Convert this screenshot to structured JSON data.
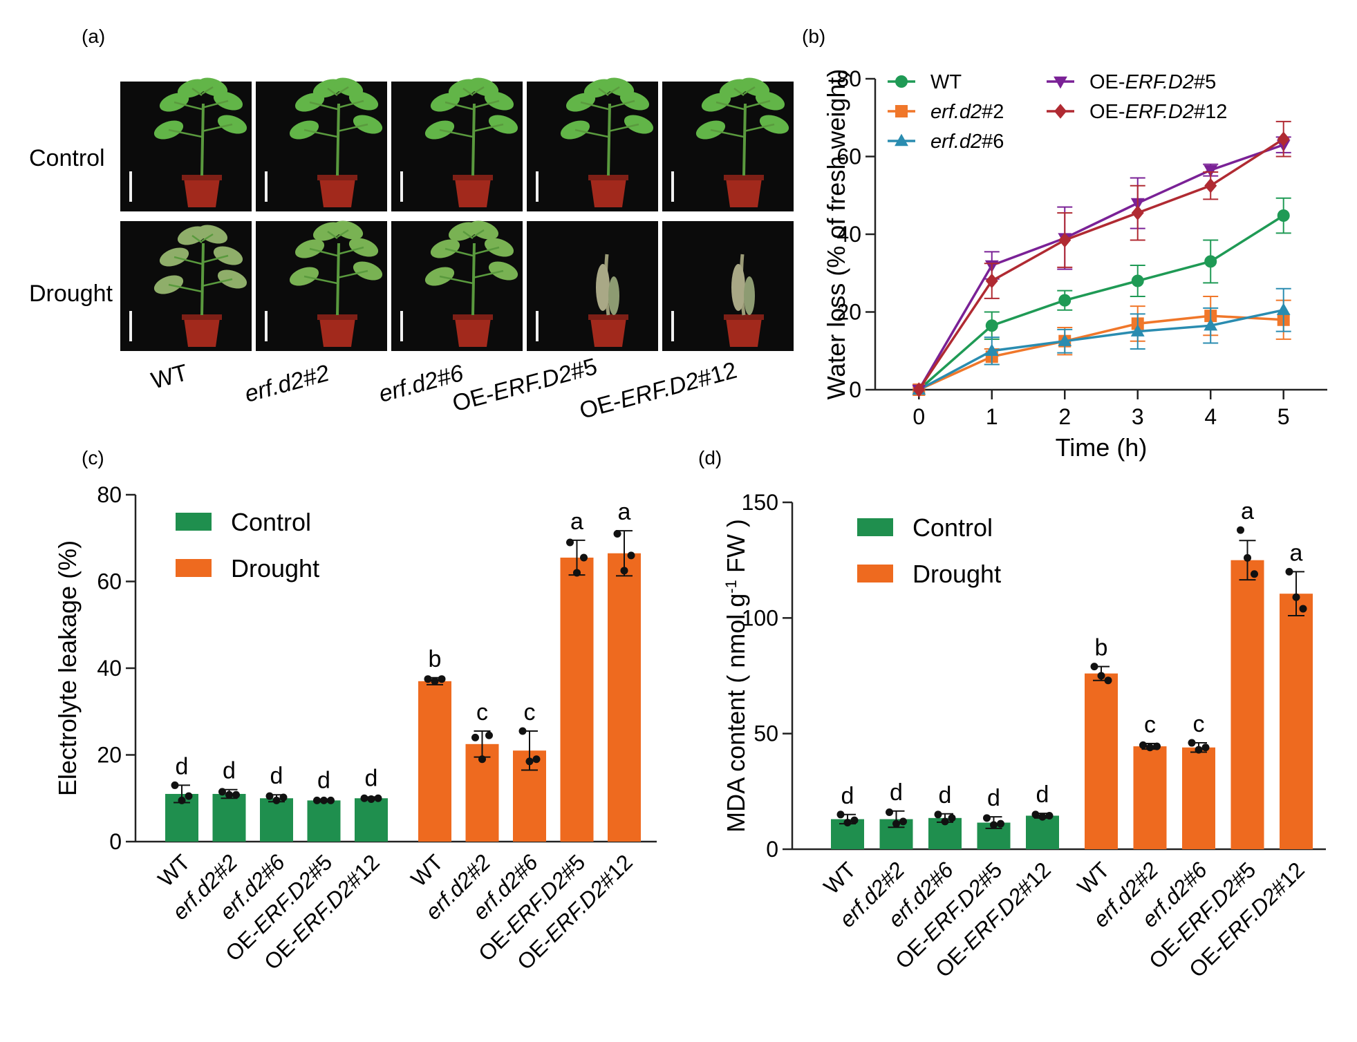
{
  "panel_labels": {
    "a": "(a)",
    "b": "(b)",
    "c": "(c)",
    "d": "(d)"
  },
  "colors": {
    "control": "#1f8f4e",
    "drought": "#ee6a1f",
    "WT": "#1f9a55",
    "erf2": "#f0772a",
    "erf6": "#2a8cb0",
    "oe5": "#7a2196",
    "oe12": "#b02a32",
    "photo_bg": "#0b0b0b",
    "plant": "#5fae45",
    "pot": "#a2291c"
  },
  "panel_a": {
    "row_labels": [
      "Control",
      "Drought"
    ],
    "columns": [
      {
        "parts": [
          {
            "t": "WT",
            "i": false
          }
        ]
      },
      {
        "parts": [
          {
            "t": "erf.d2#2",
            "i": true
          }
        ]
      },
      {
        "parts": [
          {
            "t": "erf.d2#6",
            "i": true
          }
        ]
      },
      {
        "parts": [
          {
            "t": "OE-",
            "i": false
          },
          {
            "t": "ERF.D2",
            "i": true
          },
          {
            "t": "#5",
            "i": false
          }
        ]
      },
      {
        "parts": [
          {
            "t": "OE-",
            "i": false
          },
          {
            "t": "ERF.D2",
            "i": true
          },
          {
            "t": "#12",
            "i": false
          }
        ]
      }
    ],
    "drought_state": [
      "moderate",
      "mild",
      "mild",
      "severe",
      "severe"
    ]
  },
  "chart_data": [
    {
      "type": "line",
      "panel": "b",
      "xlabel": "Time (h)",
      "ylabel": "Water loss (% of fresh weight)",
      "x": [
        0,
        1,
        2,
        3,
        4,
        5
      ],
      "xlim": [
        -0.6,
        5.6
      ],
      "ylim": [
        0,
        80
      ],
      "yticks": [
        0,
        20,
        40,
        60,
        80
      ],
      "series": [
        {
          "key": "WT",
          "marker": "circle",
          "legend_parts": [
            {
              "t": "WT",
              "i": false
            }
          ],
          "values": [
            0,
            16.5,
            23,
            28,
            33,
            44.8
          ],
          "err": [
            0,
            3.5,
            2.5,
            4,
            5.5,
            4.5
          ]
        },
        {
          "key": "erf2",
          "marker": "square",
          "legend_parts": [
            {
              "t": "erf.d2",
              "i": true
            },
            {
              "t": "#2",
              "i": false
            }
          ],
          "values": [
            0,
            8.5,
            12.5,
            17,
            19,
            18
          ],
          "err": [
            0,
            2,
            3.5,
            4.5,
            5,
            5
          ]
        },
        {
          "key": "erf6",
          "marker": "triangle",
          "legend_parts": [
            {
              "t": "erf.d2",
              "i": true
            },
            {
              "t": "#6",
              "i": false
            }
          ],
          "values": [
            0,
            10,
            12.5,
            15,
            16.5,
            20.5
          ],
          "err": [
            0,
            3.5,
            3,
            4.5,
            4.5,
            5.5
          ]
        },
        {
          "key": "oe5",
          "marker": "triangle-down",
          "legend_parts": [
            {
              "t": "OE-",
              "i": false
            },
            {
              "t": "ERF.D2",
              "i": true
            },
            {
              "t": "#5",
              "i": false
            }
          ],
          "values": [
            0,
            32,
            39,
            48,
            56.5,
            63
          ],
          "err": [
            0,
            3.5,
            8,
            6.5,
            1.5,
            2
          ]
        },
        {
          "key": "oe12",
          "marker": "diamond",
          "legend_parts": [
            {
              "t": "OE-",
              "i": false
            },
            {
              "t": "ERF.D2",
              "i": true
            },
            {
              "t": "#12",
              "i": false
            }
          ],
          "values": [
            0,
            28,
            38.5,
            45.5,
            52.5,
            64.5
          ],
          "err": [
            0,
            4.5,
            7,
            7,
            3.5,
            4.5
          ]
        }
      ]
    },
    {
      "type": "bar",
      "panel": "c",
      "ylabel": "Electrolyte leakage (%)",
      "ylim": [
        0,
        80
      ],
      "yticks": [
        0,
        20,
        40,
        60,
        80
      ],
      "legend": [
        "Control",
        "Drought"
      ],
      "groups": [
        {
          "name": "Control",
          "colorKey": "control",
          "values": [
            11,
            11,
            10,
            9.5,
            10
          ],
          "err": [
            2,
            1,
            0.8,
            0.3,
            0.3
          ],
          "letters": [
            "d",
            "d",
            "d",
            "d",
            "d"
          ],
          "points": [
            [
              13,
              9.5,
              10.5
            ],
            [
              11.5,
              10.8,
              10.8
            ],
            [
              10.5,
              9.5,
              10.2
            ],
            [
              9.5,
              9.5,
              9.5
            ],
            [
              10,
              9.8,
              10
            ]
          ]
        },
        {
          "name": "Drought",
          "colorKey": "drought",
          "values": [
            37,
            22.5,
            21,
            65.5,
            66.5
          ],
          "err": [
            0.8,
            3,
            4.5,
            4,
            5.2
          ],
          "letters": [
            "b",
            "c",
            "c",
            "a",
            "a"
          ],
          "points": [
            [
              37.5,
              37,
              37.5
            ],
            [
              24,
              19,
              24.5
            ],
            [
              25.5,
              18.5,
              19
            ],
            [
              69,
              62,
              65.5
            ],
            [
              71,
              62.5,
              66
            ]
          ]
        }
      ],
      "categories_parts": [
        [
          {
            "t": "WT",
            "i": false
          }
        ],
        [
          {
            "t": "erf.d2#2",
            "i": true
          }
        ],
        [
          {
            "t": "erf.d2#6",
            "i": true
          }
        ],
        [
          {
            "t": "OE-",
            "i": false
          },
          {
            "t": "ERF.D2",
            "i": true
          },
          {
            "t": "#5",
            "i": false
          }
        ],
        [
          {
            "t": "OE-",
            "i": false
          },
          {
            "t": "ERF.D2",
            "i": true
          },
          {
            "t": "#12",
            "i": false
          }
        ]
      ]
    },
    {
      "type": "bar",
      "panel": "d",
      "ylabel": "MDA content ( nmol g",
      "ylabel_sup": "-1",
      "ylabel_end": " FW )",
      "ylim": [
        0,
        150
      ],
      "yticks": [
        0,
        50,
        100,
        150
      ],
      "legend": [
        "Control",
        "Drought"
      ],
      "groups": [
        {
          "name": "Control",
          "colorKey": "control",
          "values": [
            13,
            13,
            13.5,
            11.5,
            14.5
          ],
          "err": [
            2,
            3.5,
            1.8,
            2.5,
            1
          ],
          "letters": [
            "d",
            "d",
            "d",
            "d",
            "d"
          ],
          "points": [
            [
              15,
              11.5,
              12.5
            ],
            [
              16,
              11,
              12
            ],
            [
              15,
              12,
              13.5
            ],
            [
              13.5,
              10.5,
              11
            ],
            [
              15,
              14,
              14.5
            ]
          ]
        },
        {
          "name": "Drought",
          "colorKey": "drought",
          "values": [
            76,
            44.5,
            44,
            125,
            110.5
          ],
          "err": [
            3,
            1.2,
            2,
            8.5,
            9.5
          ],
          "letters": [
            "b",
            "c",
            "c",
            "a",
            "a"
          ],
          "points": [
            [
              79,
              75,
              73
            ],
            [
              45,
              44,
              44.5
            ],
            [
              46,
              43,
              44
            ],
            [
              138,
              126,
              119
            ],
            [
              120,
              109,
              104
            ]
          ]
        }
      ],
      "categories_parts": [
        [
          {
            "t": "WT",
            "i": false
          }
        ],
        [
          {
            "t": "erf.d2#2",
            "i": true
          }
        ],
        [
          {
            "t": "erf.d2#6",
            "i": true
          }
        ],
        [
          {
            "t": "OE-",
            "i": false
          },
          {
            "t": "ERF.D2",
            "i": true
          },
          {
            "t": "#5",
            "i": false
          }
        ],
        [
          {
            "t": "OE-",
            "i": false
          },
          {
            "t": "ERF.D2",
            "i": true
          },
          {
            "t": "#12",
            "i": false
          }
        ]
      ]
    }
  ]
}
